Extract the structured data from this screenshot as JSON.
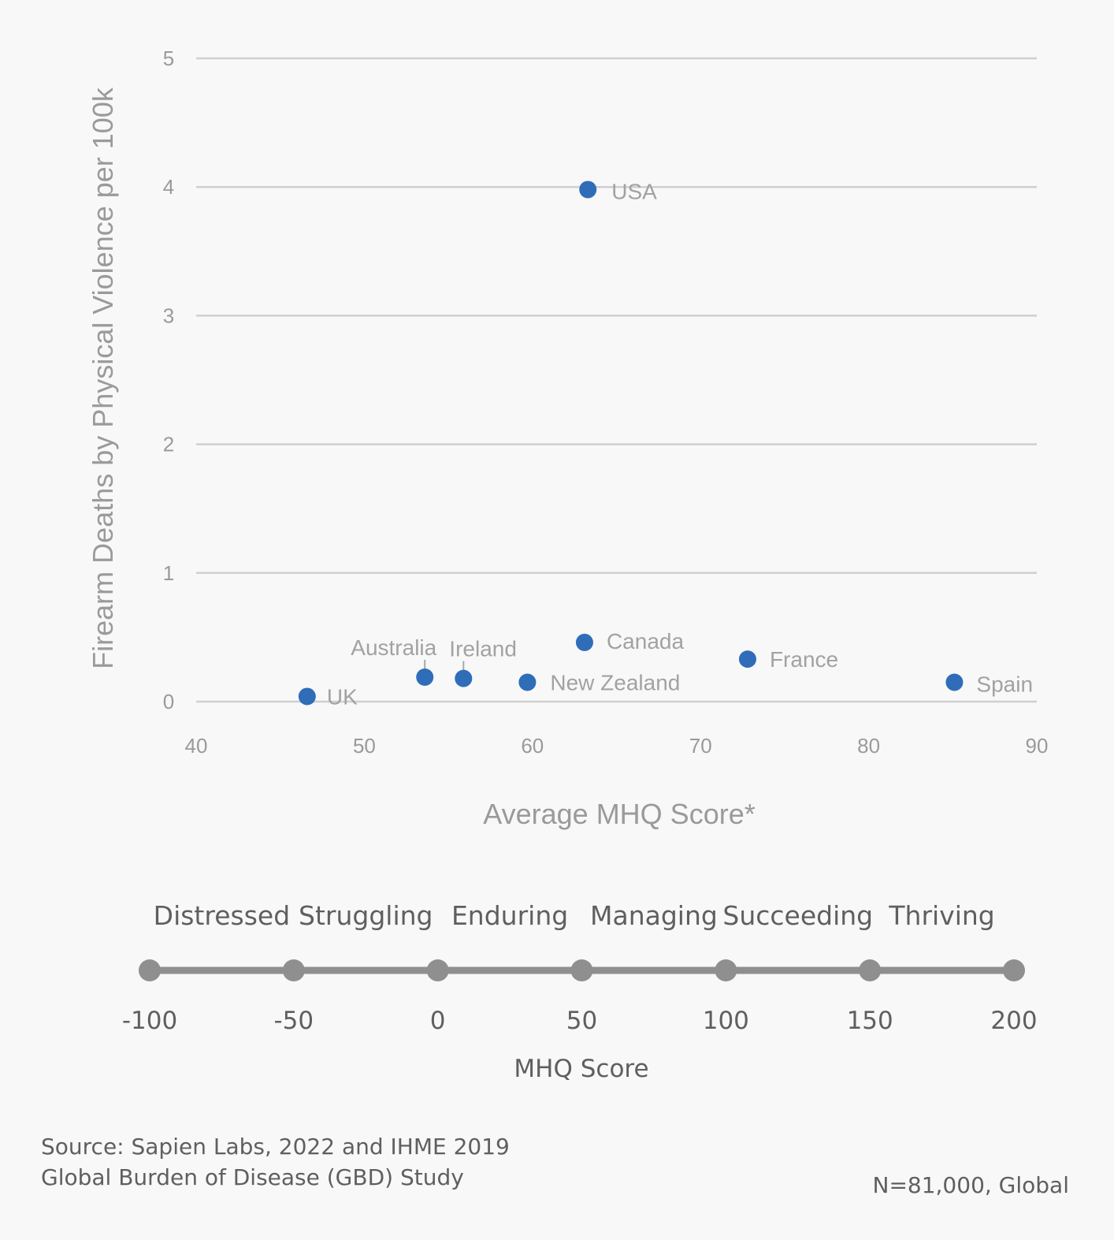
{
  "chart_data": {
    "type": "scatter",
    "xlabel": "Average MHQ Score*",
    "ylabel": "Firearm Deaths by Physical Violence per 100k",
    "xlim": [
      40,
      90
    ],
    "ylim": [
      0,
      5
    ],
    "x_ticks": [
      "40",
      "50",
      "60",
      "70",
      "80",
      "90"
    ],
    "y_ticks": [
      "0",
      "1",
      "2",
      "3",
      "4",
      "5"
    ],
    "grid": true,
    "color": "#2f6db8",
    "points": [
      {
        "label": "UK",
        "x": 46.6,
        "y": 0.04
      },
      {
        "label": "Australia",
        "x": 53.6,
        "y": 0.19
      },
      {
        "label": "Ireland",
        "x": 55.9,
        "y": 0.18
      },
      {
        "label": "New Zealand",
        "x": 59.7,
        "y": 0.15
      },
      {
        "label": "Canada",
        "x": 63.1,
        "y": 0.46
      },
      {
        "label": "USA",
        "x": 63.3,
        "y": 3.98
      },
      {
        "label": "France",
        "x": 72.8,
        "y": 0.33
      },
      {
        "label": "Spain",
        "x": 85.1,
        "y": 0.15
      }
    ]
  },
  "mhq_scale": {
    "categories": [
      "Distressed",
      "Struggling",
      "Enduring",
      "Managing",
      "Succeeding",
      "Thriving"
    ],
    "ticks": [
      "-100",
      "-50",
      "0",
      "50",
      "100",
      "150",
      "200"
    ],
    "title": "MHQ Score",
    "color": "#8f8f8f"
  },
  "footer": {
    "source_line1": "Source: Sapien Labs, 2022 and IHME 2019",
    "source_line2": "Global Burden of Disease (GBD) Study",
    "sample": "N=81,000, Global"
  }
}
